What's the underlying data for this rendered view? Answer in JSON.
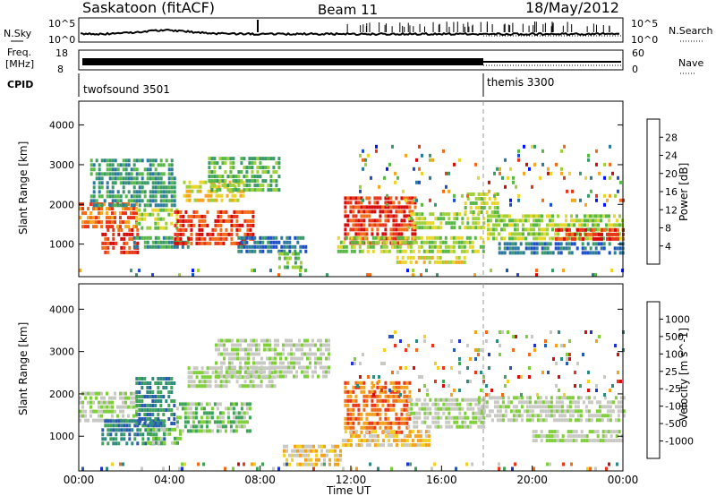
{
  "header": {
    "title": "Saskatoon (fitACF)",
    "beam": "Beam 11",
    "date": "18/May/2012"
  },
  "top_panels": {
    "nsky": {
      "label": "N.Sky",
      "tick_top": "10^5",
      "tick_bottom": "10^0"
    },
    "nsearch": {
      "label": "N.Search",
      "tick_top": "10^5",
      "tick_bottom": "10^0"
    },
    "freq": {
      "label_line1": "Freq.",
      "label_line2": "[MHz]",
      "tick_top": "18",
      "tick_bottom": "8"
    },
    "nave": {
      "label": "Nave",
      "tick_top": "60",
      "tick_bottom": "0"
    },
    "cpid": {
      "label": "CPID",
      "segments": [
        {
          "name": "twofsound 3501",
          "start_hour": 0
        },
        {
          "name": "themis 3300",
          "start_hour": 18
        }
      ]
    }
  },
  "chart_data": [
    {
      "type": "heatmap",
      "panel": "power",
      "ylabel": "Slant Range [km]",
      "x_range_hours": [
        0,
        24
      ],
      "ylim": [
        180,
        4600
      ],
      "yticks": [
        1000,
        2000,
        3000,
        4000
      ],
      "colorbar": {
        "label": "Power [dB]",
        "ticks": [
          "4",
          "8",
          "12",
          "16",
          "20",
          "24",
          "28"
        ],
        "colors": [
          "#0014ff",
          "#1f4fc8",
          "#2d7aa0",
          "#3a9a6a",
          "#58b847",
          "#9ed03c",
          "#e9d62a",
          "#f5a623",
          "#f26d1a",
          "#e8361a",
          "#d40b0b"
        ]
      },
      "bands": [
        {
          "t0": 0.0,
          "t1": 2.6,
          "r0": 1380,
          "r1": 2050,
          "level": 8
        },
        {
          "t0": 1.0,
          "t1": 2.6,
          "r0": 780,
          "r1": 1400,
          "level": 9
        },
        {
          "t0": 0.5,
          "t1": 4.2,
          "r0": 2000,
          "r1": 3150,
          "level": 3
        },
        {
          "t0": 2.5,
          "t1": 4.3,
          "r0": 1350,
          "r1": 1900,
          "level": 5
        },
        {
          "t0": 2.4,
          "t1": 4.8,
          "r0": 900,
          "r1": 1200,
          "level": 3
        },
        {
          "t0": 4.2,
          "t1": 7.7,
          "r0": 1050,
          "r1": 1850,
          "level": 9
        },
        {
          "t0": 4.6,
          "t1": 7.3,
          "r0": 2100,
          "r1": 2600,
          "level": 6
        },
        {
          "t0": 5.7,
          "t1": 8.8,
          "r0": 2400,
          "r1": 3200,
          "level": 4
        },
        {
          "t0": 7.0,
          "t1": 10.0,
          "r0": 850,
          "r1": 1200,
          "level": 2
        },
        {
          "t0": 8.8,
          "t1": 9.8,
          "r0": 420,
          "r1": 800,
          "level": 4
        },
        {
          "t0": 11.7,
          "t1": 14.8,
          "r0": 1050,
          "r1": 2200,
          "level": 9
        },
        {
          "t0": 11.4,
          "t1": 17.9,
          "r0": 800,
          "r1": 1200,
          "level": 5
        },
        {
          "t0": 14.5,
          "t1": 17.9,
          "r0": 1350,
          "r1": 1800,
          "level": 5
        },
        {
          "t0": 14.0,
          "t1": 17.0,
          "r0": 500,
          "r1": 700,
          "level": 6
        },
        {
          "t0": 17.0,
          "t1": 18.5,
          "r0": 1800,
          "r1": 2300,
          "level": 5
        },
        {
          "t0": 18.0,
          "t1": 24.0,
          "r0": 1100,
          "r1": 1750,
          "level": 5
        },
        {
          "t0": 21.0,
          "t1": 24.0,
          "r0": 1100,
          "r1": 1400,
          "level": 9
        },
        {
          "t0": 18.5,
          "t1": 24.0,
          "r0": 800,
          "r1": 1050,
          "level": 2
        },
        {
          "t0": 12.0,
          "t1": 24.0,
          "r0": 2000,
          "r1": 3500,
          "level": 0,
          "sparse": true
        },
        {
          "t0": 0.0,
          "t1": 24.0,
          "r0": 180,
          "r1": 380,
          "level": 1,
          "sparse": true
        }
      ]
    },
    {
      "type": "heatmap",
      "panel": "velocity",
      "ylabel": "Slant Range [km]",
      "x_range_hours": [
        0,
        24
      ],
      "ylim": [
        180,
        4600
      ],
      "yticks": [
        1000,
        2000,
        3000,
        4000
      ],
      "xticks": [
        "00:00",
        "04:00",
        "08:00",
        "12:00",
        "16:00",
        "20:00",
        "00:00"
      ],
      "xlabel": "Time UT",
      "colorbar": {
        "label": "Velocity [m s^-1]",
        "ticks": [
          "1000",
          "500",
          "100",
          "25",
          "-25",
          "-100",
          "-500",
          "-1000"
        ],
        "colors": [
          "#2233cc",
          "#2a59b0",
          "#2e8a80",
          "#3fa35a",
          "#7fcf3a",
          "#c9c9c4",
          "#c9c9c4",
          "#f2d024",
          "#f2a21e",
          "#ef6c1a",
          "#e8361a",
          "#d80c0c"
        ]
      },
      "bands": [
        {
          "t0": 0.0,
          "t1": 2.5,
          "r0": 1400,
          "r1": 2050,
          "level": 5
        },
        {
          "t0": 1.0,
          "t1": 3.8,
          "r0": 800,
          "r1": 1400,
          "level": 2
        },
        {
          "t0": 2.5,
          "t1": 4.2,
          "r0": 1300,
          "r1": 2400,
          "level": 2
        },
        {
          "t0": 3.0,
          "t1": 4.5,
          "r0": 800,
          "r1": 1200,
          "level": 4
        },
        {
          "t0": 4.3,
          "t1": 7.6,
          "r0": 1100,
          "r1": 1800,
          "level": 4
        },
        {
          "t0": 4.8,
          "t1": 8.6,
          "r0": 2200,
          "r1": 2650,
          "level": 5
        },
        {
          "t0": 6.0,
          "t1": 11.0,
          "r0": 2400,
          "r1": 3300,
          "level": 5
        },
        {
          "t0": 9.0,
          "t1": 11.5,
          "r0": 300,
          "r1": 800,
          "level": 7
        },
        {
          "t0": 11.7,
          "t1": 14.6,
          "r0": 1050,
          "r1": 2300,
          "level": 9
        },
        {
          "t0": 11.6,
          "t1": 15.5,
          "r0": 800,
          "r1": 1150,
          "level": 7
        },
        {
          "t0": 14.5,
          "t1": 17.9,
          "r0": 1200,
          "r1": 1900,
          "level": 5
        },
        {
          "t0": 17.6,
          "t1": 24.0,
          "r0": 1350,
          "r1": 1950,
          "level": 5
        },
        {
          "t0": 20.0,
          "t1": 24.0,
          "r0": 850,
          "r1": 1150,
          "level": 5
        },
        {
          "t0": 0.0,
          "t1": 24.0,
          "r0": 180,
          "r1": 380,
          "level": 7,
          "sparse": true
        },
        {
          "t0": 12.0,
          "t1": 24.0,
          "r0": 2000,
          "r1": 3500,
          "level": 1,
          "sparse": true
        }
      ]
    }
  ]
}
